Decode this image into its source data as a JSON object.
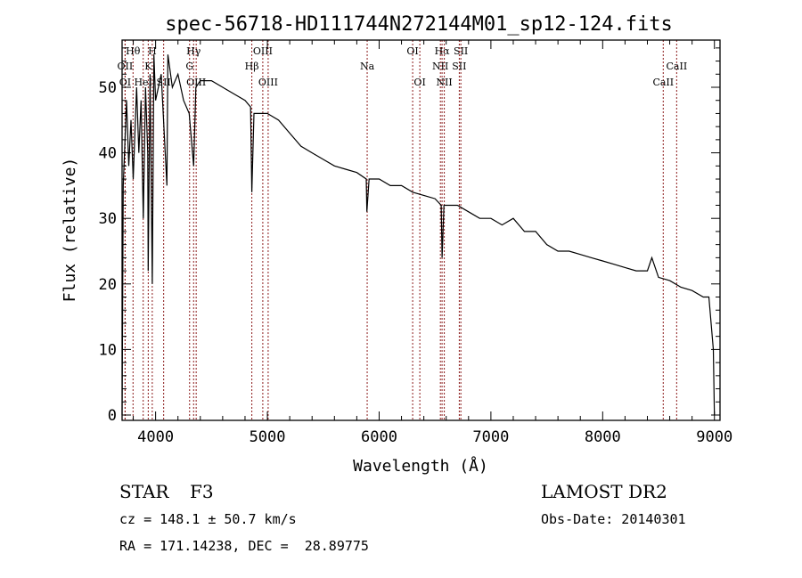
{
  "chart_data": {
    "type": "line",
    "title": "spec-56718-HD111744N272144M01_sp12-124.fits",
    "xlabel": "Wavelength (Å)",
    "ylabel": "Flux (relative)",
    "xlim": [
      3700,
      9050
    ],
    "ylim": [
      0,
      57.5
    ],
    "xticks": [
      4000,
      5000,
      6000,
      7000,
      8000,
      9000
    ],
    "yticks": [
      0,
      10,
      20,
      30,
      40,
      50
    ],
    "grid": false,
    "series": [
      {
        "name": "spectrum",
        "x": [
          3700,
          3710,
          3740,
          3760,
          3780,
          3800,
          3830,
          3850,
          3870,
          3890,
          3910,
          3930,
          3934,
          3950,
          3970,
          3985,
          4000,
          4050,
          4101,
          4110,
          4150,
          4200,
          4250,
          4300,
          4340,
          4360,
          4400,
          4500,
          4600,
          4700,
          4800,
          4850,
          4861,
          4880,
          5000,
          5100,
          5200,
          5300,
          5400,
          5500,
          5600,
          5700,
          5800,
          5885,
          5890,
          5910,
          6000,
          6100,
          6200,
          6300,
          6400,
          6500,
          6555,
          6563,
          6580,
          6700,
          6800,
          6900,
          7000,
          7100,
          7200,
          7300,
          7400,
          7500,
          7600,
          7700,
          7800,
          7900,
          8000,
          8100,
          8200,
          8300,
          8400,
          8440,
          8500,
          8600,
          8700,
          8800,
          8900,
          8950,
          8990,
          9000
        ],
        "y": [
          0,
          35,
          48,
          38,
          45,
          36,
          50,
          40,
          48,
          30,
          50,
          40,
          22,
          52,
          20,
          55,
          48,
          52,
          35,
          55,
          50,
          52,
          48,
          46,
          38,
          50,
          51,
          51,
          50,
          49,
          48,
          47,
          34,
          46,
          46,
          45,
          43,
          41,
          40,
          39,
          38,
          37.5,
          37,
          36,
          31,
          36,
          36,
          35,
          35,
          34,
          33.5,
          33,
          32,
          24,
          32,
          32,
          31,
          30,
          30,
          29,
          30,
          28,
          28,
          26,
          25,
          25,
          24.5,
          24,
          23.5,
          23,
          22.5,
          22,
          22,
          24,
          21,
          20.5,
          19.5,
          19,
          18,
          18,
          10,
          0
        ]
      }
    ],
    "lines": [
      {
        "label": "Hθ",
        "wave": 3798,
        "tier": 0
      },
      {
        "label": "H",
        "wave": 3970,
        "tier": 0
      },
      {
        "label": "Hγ",
        "wave": 4340,
        "tier": 0
      },
      {
        "label": "OIII",
        "wave": 4959,
        "tier": 0
      },
      {
        "label": "OI",
        "wave": 6300,
        "tier": 0
      },
      {
        "label": "Hα",
        "wave": 6563,
        "tier": 0
      },
      {
        "label": "SII",
        "wave": 6731,
        "tier": 0
      },
      {
        "label": "OII",
        "wave": 3727,
        "tier": 1
      },
      {
        "label": "K",
        "wave": 3934,
        "tier": 1
      },
      {
        "label": "G",
        "wave": 4304,
        "tier": 1
      },
      {
        "label": "Hβ",
        "wave": 4861,
        "tier": 1
      },
      {
        "label": "Na",
        "wave": 5893,
        "tier": 1
      },
      {
        "label": "NII",
        "wave": 6548,
        "tier": 1
      },
      {
        "label": "SII",
        "wave": 6717,
        "tier": 1
      },
      {
        "label": "CaII",
        "wave": 8662,
        "tier": 1
      },
      {
        "label": "OI",
        "wave": 3727,
        "tier": 2
      },
      {
        "label": "HeI",
        "wave": 3889,
        "tier": 2
      },
      {
        "label": "SII",
        "wave": 4072,
        "tier": 2
      },
      {
        "label": "OIII",
        "wave": 4363,
        "tier": 2
      },
      {
        "label": "OIII",
        "wave": 5007,
        "tier": 2
      },
      {
        "label": "OI",
        "wave": 6364,
        "tier": 2
      },
      {
        "label": "NII",
        "wave": 6583,
        "tier": 2
      },
      {
        "label": "CaII",
        "wave": 8542,
        "tier": 2
      }
    ]
  },
  "info": {
    "class": "STAR",
    "subclass": "F3",
    "cz": "cz = 148.1 ± 50.7 km/s",
    "coords": "RA = 171.14238, DEC =  28.89775",
    "survey": "LAMOST DR2",
    "obs_date": "Obs-Date: 20140301"
  }
}
